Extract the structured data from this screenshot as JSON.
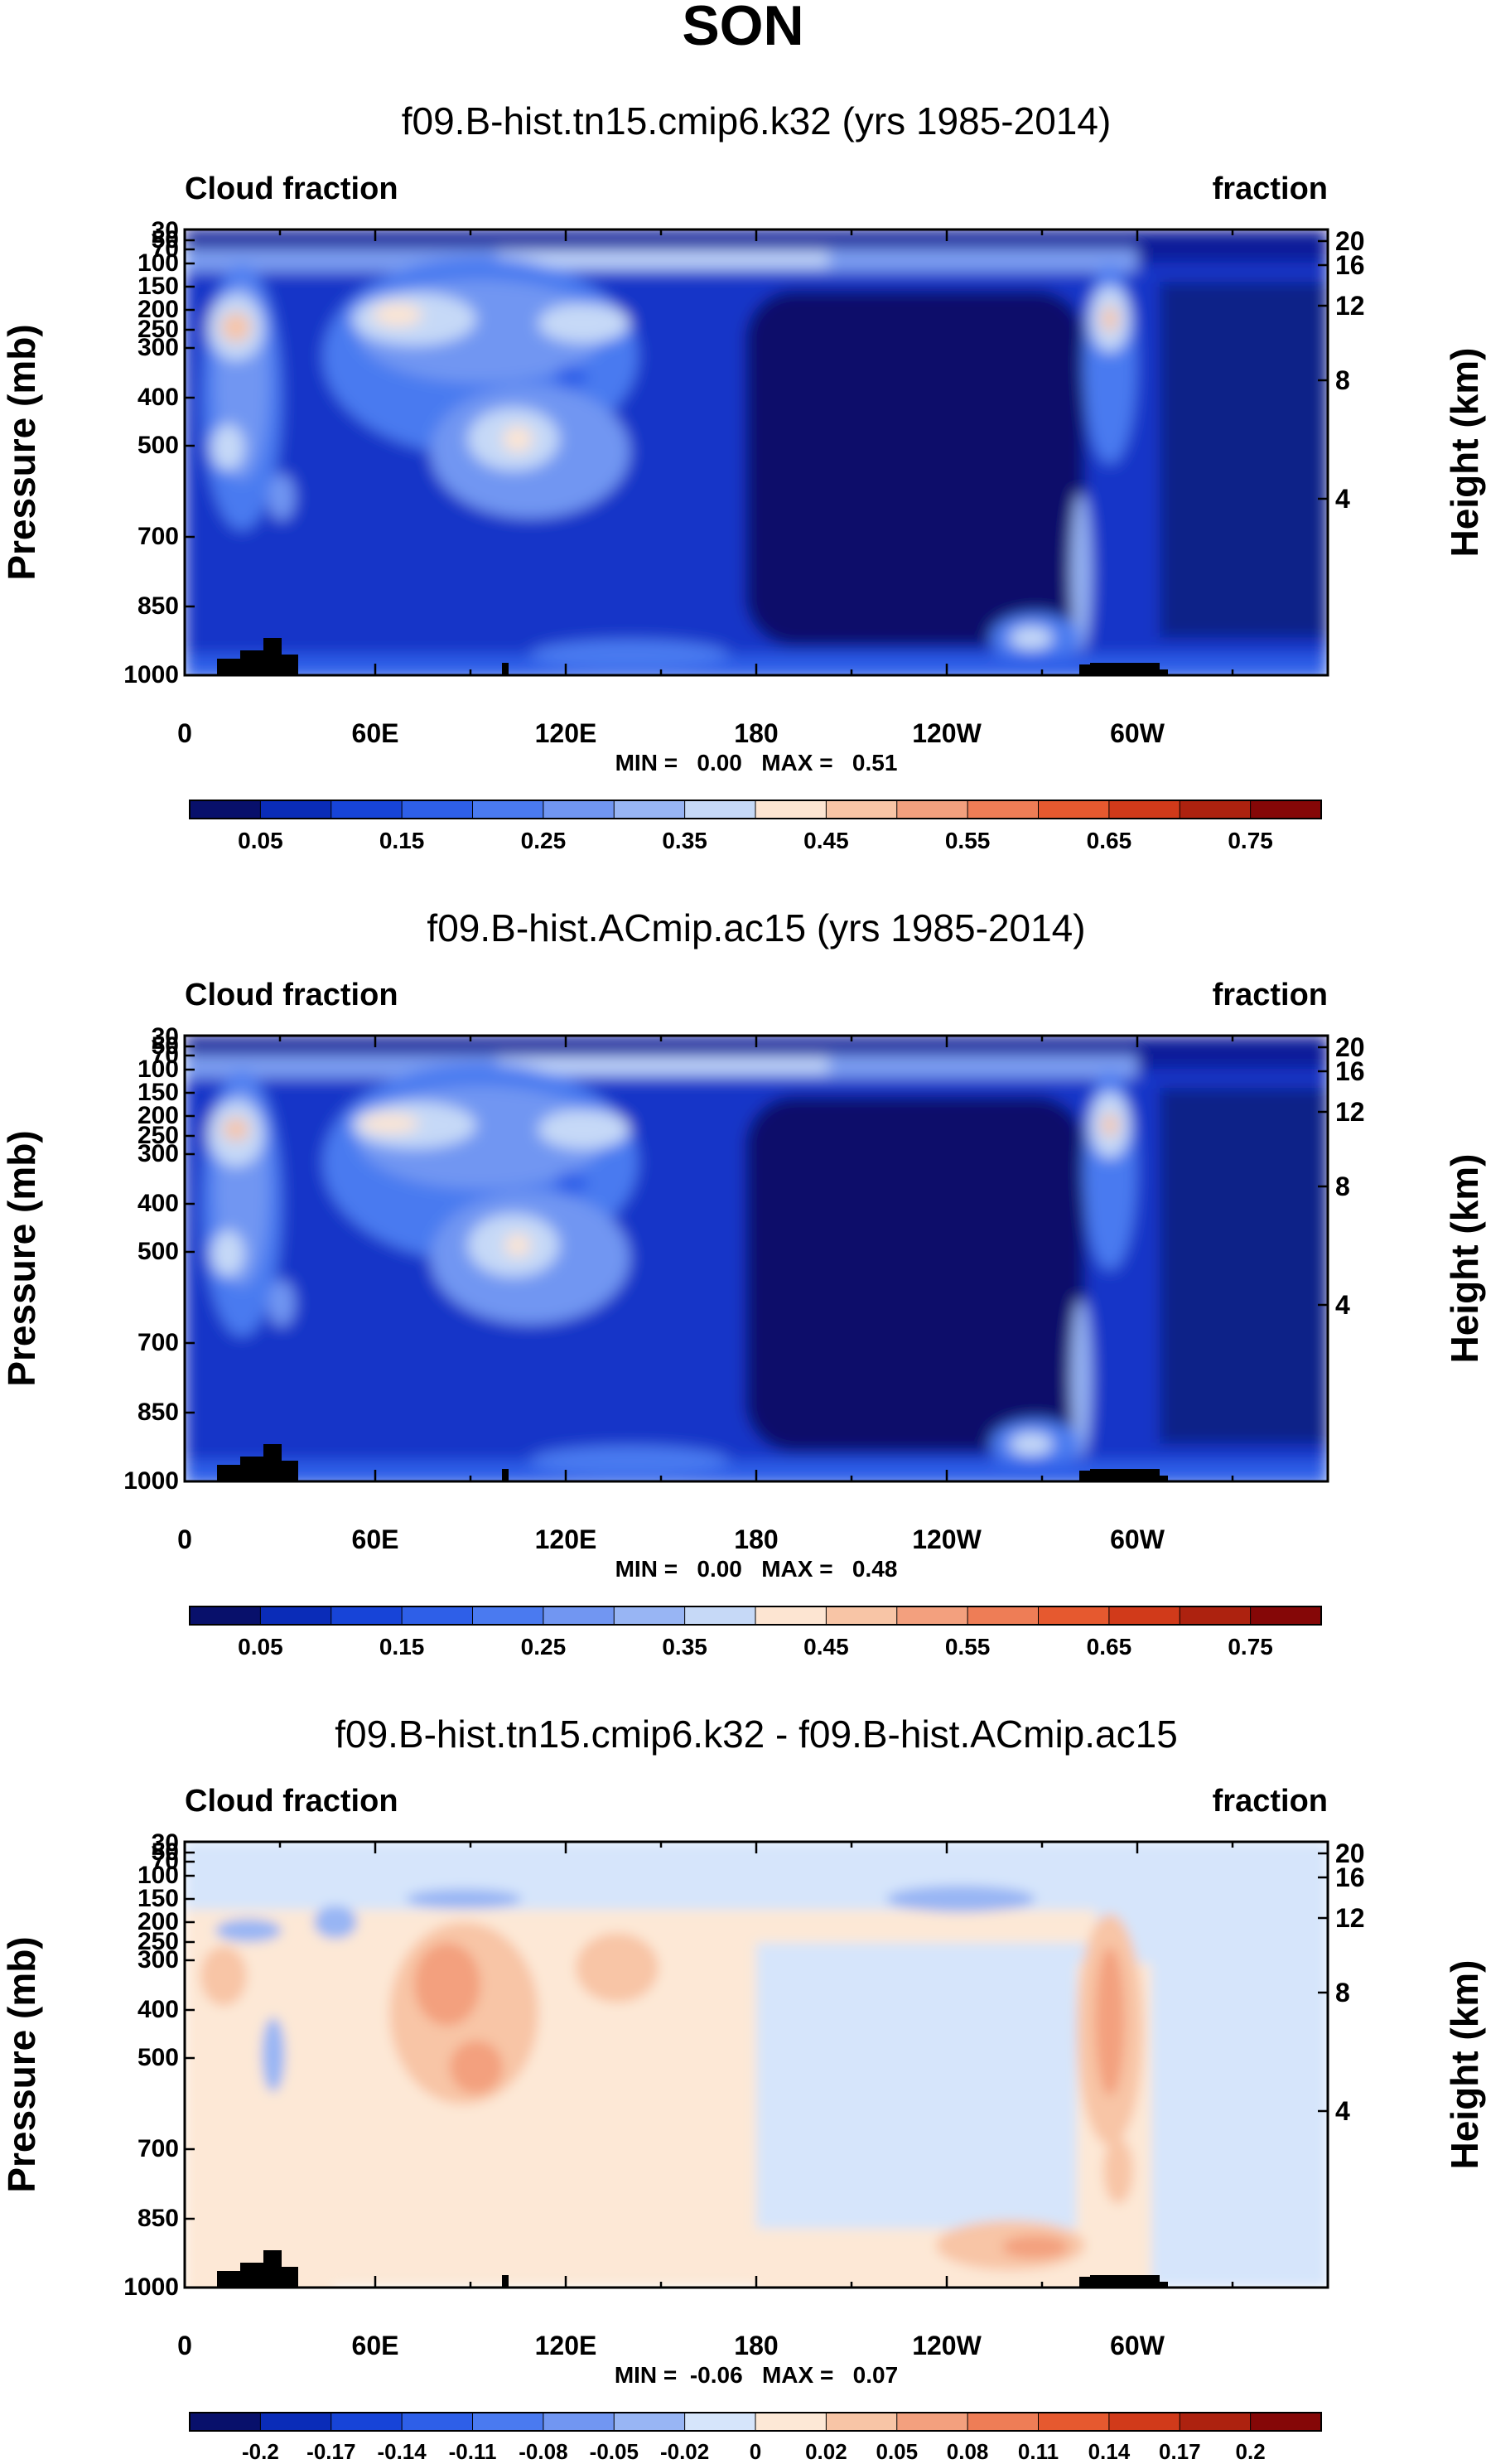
{
  "figure": {
    "title": "SON"
  },
  "chart_data": [
    {
      "type": "heatmap",
      "title": "f09.B-hist.tn15.cmip6.k32 (yrs 1985-2014)",
      "left_label": "Cloud fraction",
      "right_label": "fraction",
      "ylabel": "Pressure (mb)",
      "ylabel_right": "Height (km)",
      "x_ticks": [
        "0",
        "60E",
        "120E",
        "180",
        "120W",
        "60W"
      ],
      "y_ticks": [
        "30",
        "50",
        "70",
        "100",
        "150",
        "200",
        "250",
        "300",
        "400",
        "500",
        "700",
        "850",
        "1000"
      ],
      "height_ticks": [
        "20",
        "16",
        "12",
        "8",
        "4"
      ],
      "stats": "MIN =   0.00   MAX =   0.51",
      "colorbar": {
        "labels": [
          "0.05",
          "0.15",
          "0.25",
          "0.35",
          "0.45",
          "0.55",
          "0.65",
          "0.75"
        ],
        "colors": [
          "#08106b",
          "#0a2cb8",
          "#1744d8",
          "#2e5fe8",
          "#4a7af0",
          "#7196f2",
          "#98b5f4",
          "#c6d9f7",
          "#fde5d2",
          "#f8c5a6",
          "#f3a07e",
          "#ee7d56",
          "#e6592f",
          "#d13a1a",
          "#ad220f",
          "#850707"
        ]
      }
    },
    {
      "type": "heatmap",
      "title": "f09.B-hist.ACmip.ac15 (yrs 1985-2014)",
      "left_label": "Cloud fraction",
      "right_label": "fraction",
      "ylabel": "Pressure (mb)",
      "ylabel_right": "Height (km)",
      "x_ticks": [
        "0",
        "60E",
        "120E",
        "180",
        "120W",
        "60W"
      ],
      "y_ticks": [
        "30",
        "50",
        "70",
        "100",
        "150",
        "200",
        "250",
        "300",
        "400",
        "500",
        "700",
        "850",
        "1000"
      ],
      "height_ticks": [
        "20",
        "16",
        "12",
        "8",
        "4"
      ],
      "stats": "MIN =   0.00   MAX =   0.48",
      "colorbar": {
        "labels": [
          "0.05",
          "0.15",
          "0.25",
          "0.35",
          "0.45",
          "0.55",
          "0.65",
          "0.75"
        ],
        "colors": [
          "#08106b",
          "#0a2cb8",
          "#1744d8",
          "#2e5fe8",
          "#4a7af0",
          "#7196f2",
          "#98b5f4",
          "#c6d9f7",
          "#fde5d2",
          "#f8c5a6",
          "#f3a07e",
          "#ee7d56",
          "#e6592f",
          "#d13a1a",
          "#ad220f",
          "#850707"
        ]
      }
    },
    {
      "type": "heatmap",
      "title": "f09.B-hist.tn15.cmip6.k32 - f09.B-hist.ACmip.ac15",
      "left_label": "Cloud fraction",
      "right_label": "fraction",
      "ylabel": "Pressure (mb)",
      "ylabel_right": "Height (km)",
      "x_ticks": [
        "0",
        "60E",
        "120E",
        "180",
        "120W",
        "60W"
      ],
      "y_ticks": [
        "30",
        "50",
        "70",
        "100",
        "150",
        "200",
        "250",
        "300",
        "400",
        "500",
        "700",
        "850",
        "1000"
      ],
      "height_ticks": [
        "20",
        "16",
        "12",
        "8",
        "4"
      ],
      "stats": "MIN =  -0.06   MAX =   0.07",
      "colorbar": {
        "labels": [
          "-0.2",
          "-0.17",
          "-0.14",
          "-0.11",
          "-0.08",
          "-0.05",
          "-0.02",
          "0",
          "0.02",
          "0.05",
          "0.08",
          "0.11",
          "0.14",
          "0.17",
          "0.2"
        ],
        "colors": [
          "#08106b",
          "#0a2cb8",
          "#1744d8",
          "#2e5fe8",
          "#4a7af0",
          "#7196f2",
          "#98b5f4",
          "#d6e5fb",
          "#fde8d6",
          "#f8c5a6",
          "#f3a07e",
          "#ee7d56",
          "#e6592f",
          "#d13a1a",
          "#ad220f",
          "#850707"
        ]
      }
    }
  ]
}
